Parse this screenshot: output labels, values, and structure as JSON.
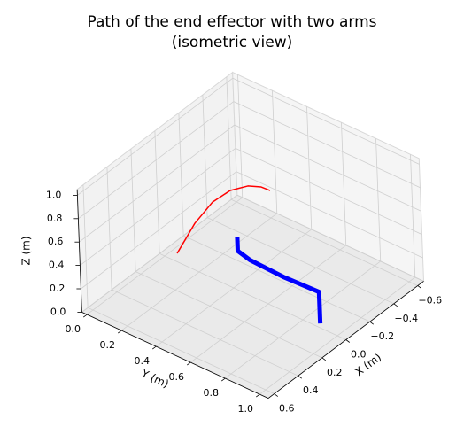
{
  "chart_data": {
    "type": "line3d",
    "title": [
      "Path of the end effector with two arms",
      "(isometric view)"
    ],
    "xlabel": "X (m)",
    "ylabel": "Y (m)",
    "zlabel": "Z (m)",
    "xlim": [
      -0.65,
      0.65
    ],
    "ylim": [
      -0.03,
      1.05
    ],
    "zlim": [
      0,
      1.05
    ],
    "xticks": [
      {
        "value": -0.6,
        "label": "−0.6"
      },
      {
        "value": -0.4,
        "label": "−0.4"
      },
      {
        "value": -0.2,
        "label": "−0.2"
      },
      {
        "value": 0,
        "label": "0.0"
      },
      0.2,
      0.4,
      0.6
    ],
    "yticks": [
      {
        "value": 0,
        "label": "0.0"
      },
      0.2,
      0.4,
      0.6,
      0.8,
      {
        "value": 1,
        "label": "1.0"
      }
    ],
    "zticks": [
      {
        "value": 0,
        "label": "0.0"
      },
      0.2,
      0.4,
      0.6,
      0.8,
      {
        "value": 1,
        "label": "1.0"
      }
    ],
    "grid": true,
    "series": [
      {
        "color": "#ff0000",
        "x": [
          0,
          0,
          0,
          0,
          0,
          0,
          0
        ],
        "y": [
          0.074,
          0.185,
          0.294,
          0.401,
          0.506,
          0.584,
          0.636
        ],
        "z": [
          0.073,
          0.406,
          0.662,
          0.834,
          0.944,
          0.989,
          0.994
        ]
      },
      {
        "color": "#0000ff",
        "x": [
          -0.03,
          -0.03,
          -0.02,
          -0.03,
          -0.03,
          -0.03
        ],
        "y": [
          0.88,
          0.88,
          0.68,
          0.48,
          0.41,
          0.41
        ],
        "z": [
          0,
          0.27,
          0.27,
          0.27,
          0.3,
          0.42
        ]
      }
    ]
  }
}
